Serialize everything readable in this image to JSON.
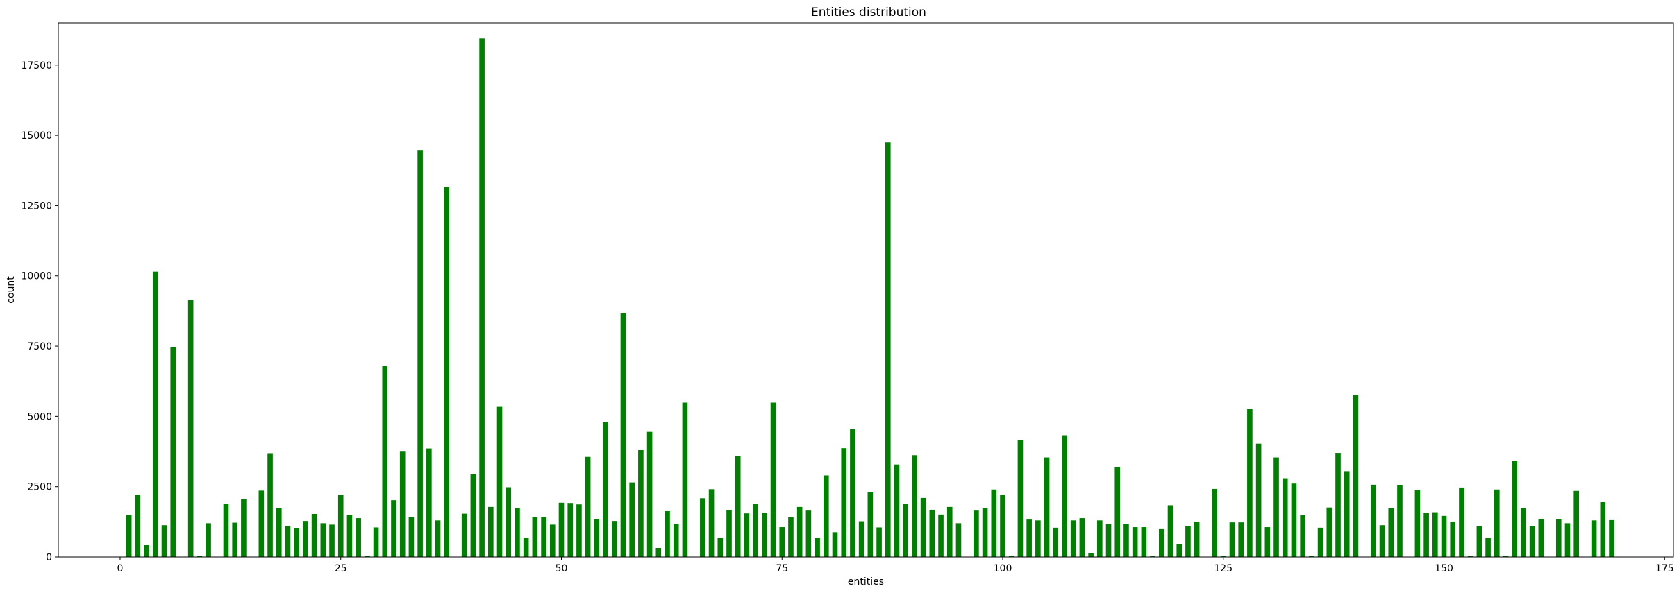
{
  "chart_data": {
    "type": "bar",
    "title": "Entities distribution",
    "xlabel": "entities",
    "ylabel": "count",
    "xlim": [
      -7,
      176
    ],
    "ylim": [
      0,
      19000
    ],
    "xticks": [
      0,
      25,
      50,
      75,
      100,
      125,
      150,
      175
    ],
    "yticks": [
      0,
      2500,
      5000,
      7500,
      10000,
      12500,
      15000,
      17500
    ],
    "bar_color": "#008000",
    "bar_width": 0.6,
    "grid": false,
    "x": [
      0,
      1,
      2,
      3,
      4,
      5,
      6,
      7,
      8,
      9,
      10,
      11,
      12,
      13,
      14,
      15,
      16,
      17,
      18,
      19,
      20,
      21,
      22,
      23,
      24,
      25,
      26,
      27,
      28,
      29,
      30,
      31,
      32,
      33,
      34,
      35,
      36,
      37,
      38,
      39,
      40,
      41,
      42,
      43,
      44,
      45,
      46,
      47,
      48,
      49,
      50,
      51,
      52,
      53,
      54,
      55,
      56,
      57,
      58,
      59,
      60,
      61,
      62,
      63,
      64,
      65,
      66,
      67,
      68,
      69,
      70,
      71,
      72,
      73,
      74,
      75,
      76,
      77,
      78,
      79,
      80,
      81,
      82,
      83,
      84,
      85,
      86,
      87,
      88,
      89,
      90,
      91,
      92,
      93,
      94,
      95,
      96,
      97,
      98,
      99,
      100,
      101,
      102,
      103,
      104,
      105,
      106,
      107,
      108,
      109,
      110,
      111,
      112,
      113,
      114,
      115,
      116,
      117,
      118,
      119,
      120,
      121,
      122,
      123,
      124,
      125,
      126,
      127,
      128,
      129,
      130,
      131,
      132,
      133,
      134,
      135,
      136,
      137,
      138,
      139,
      140,
      141,
      142,
      143,
      144,
      145,
      146,
      147,
      148,
      149,
      150,
      151,
      152,
      153,
      154,
      155,
      156,
      157,
      158,
      159,
      160,
      161,
      162,
      163,
      164,
      165,
      166,
      167,
      168,
      169
    ],
    "values": [
      0,
      1500,
      2200,
      420,
      10150,
      1130,
      7470,
      0,
      9150,
      30,
      1200,
      0,
      1880,
      1220,
      2060,
      0,
      2360,
      3690,
      1750,
      1110,
      1020,
      1280,
      1530,
      1200,
      1150,
      2210,
      1490,
      1380,
      30,
      1050,
      6790,
      2020,
      3770,
      1430,
      14480,
      3860,
      1300,
      13170,
      0,
      1540,
      2960,
      18450,
      1780,
      5340,
      2480,
      1730,
      670,
      1430,
      1410,
      1150,
      1930,
      1920,
      1870,
      3560,
      1350,
      4790,
      1280,
      8680,
      2650,
      3800,
      4450,
      320,
      1630,
      1170,
      5490,
      0,
      2090,
      2410,
      670,
      1670,
      3600,
      1550,
      1880,
      1560,
      5490,
      1060,
      1430,
      1780,
      1650,
      670,
      2900,
      880,
      3870,
      4550,
      1270,
      2300,
      1050,
      14750,
      3290,
      1890,
      3620,
      2100,
      1680,
      1510,
      1780,
      1200,
      0,
      1650,
      1750,
      2400,
      2220,
      30,
      4160,
      1330,
      1300,
      3540,
      1040,
      4330,
      1300,
      1380,
      130,
      1300,
      1160,
      3200,
      1180,
      1060,
      1060,
      30,
      990,
      1840,
      460,
      1090,
      1260,
      0,
      2420,
      30,
      1230,
      1230,
      5280,
      4030,
      1060,
      3540,
      2800,
      2610,
      1500,
      30,
      1040,
      1760,
      3700,
      3050,
      5770,
      0,
      2570,
      1130,
      1740,
      2550,
      0,
      2370,
      1560,
      1590,
      1460,
      1260,
      2470,
      30,
      1090,
      690,
      2400,
      30,
      3420,
      1730,
      1090,
      1340,
      0,
      1340,
      1200,
      2350,
      0,
      1300,
      1950,
      1310
    ]
  }
}
